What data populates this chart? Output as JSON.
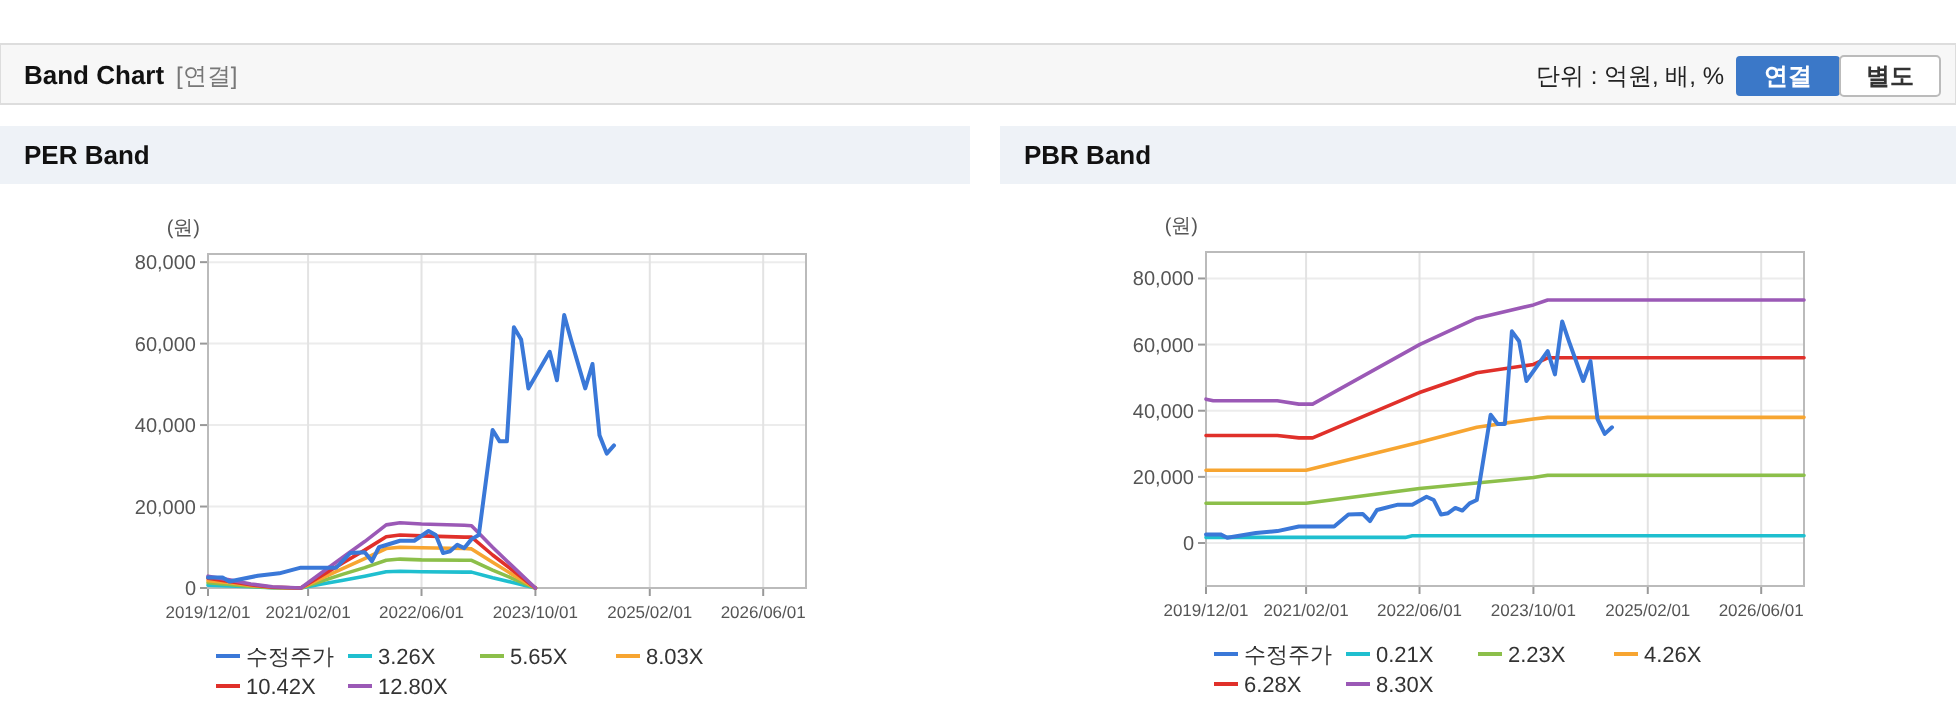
{
  "chart_data": [
    {
      "type": "other",
      "title": "Band Chart",
      "annotations": [
        "[연결]",
        "단위 : 억원, 배, %",
        "연결",
        "별도"
      ]
    },
    {
      "type": "line",
      "title": "PER Band",
      "ylabel": "(원)",
      "xlim": [
        "2019-12-01",
        "2026-12-01"
      ],
      "ylim": [
        0,
        82000
      ],
      "xticks": [
        {
          "value": "2019-12-01",
          "label": "2019/12/01"
        },
        {
          "value": "2021-02-01",
          "label": "2021/02/01"
        },
        {
          "value": "2022-06-01",
          "label": "2022/06/01"
        },
        {
          "value": "2023-10-01",
          "label": "2023/10/01"
        },
        {
          "value": "2025-02-01",
          "label": "2025/02/01"
        },
        {
          "value": "2026-06-01",
          "label": "2026/06/01"
        }
      ],
      "yticks": [
        {
          "value": 0,
          "label": "0"
        },
        {
          "value": 20000,
          "label": "20,000"
        },
        {
          "value": 40000,
          "label": "40,000"
        },
        {
          "value": 60000,
          "label": "60,000"
        },
        {
          "value": 80000,
          "label": "80,000"
        }
      ],
      "grid": true,
      "legend": "bottom",
      "series": [
        {
          "name": "수정주가",
          "color": "#3a78d8",
          "x": [
            "2019-12",
            "2020-02",
            "2020-03",
            "2020-07",
            "2020-10",
            "2021-01",
            "2021-06",
            "2021-08",
            "2021-10",
            "2021-11",
            "2021-12",
            "2022-03",
            "2022-05",
            "2022-07",
            "2022-08",
            "2022-09",
            "2022-10",
            "2022-11",
            "2022-12",
            "2023-01",
            "2023-02",
            "2023-04",
            "2023-05",
            "2023-06",
            "2023-07",
            "2023-08",
            "2023-09",
            "2023-12",
            "2024-01",
            "2024-02",
            "2024-03",
            "2024-05",
            "2024-06",
            "2024-07",
            "2024-08",
            "2024-09"
          ],
          "values": [
            2600,
            2600,
            1600,
            3000,
            3600,
            5000,
            5000,
            8600,
            8800,
            6600,
            10000,
            11600,
            11600,
            14000,
            13000,
            8600,
            9000,
            10600,
            9800,
            12000,
            13000,
            38800,
            36000,
            36000,
            64000,
            61000,
            49000,
            58000,
            51000,
            67000,
            61000,
            49000,
            55000,
            37500,
            33000,
            35000
          ]
        },
        {
          "name": "3.26X",
          "color": "#1fbfcf",
          "x": [
            "2019-12",
            "2020-03",
            "2020-06",
            "2020-09",
            "2021-01",
            "2021-04",
            "2021-07",
            "2021-10",
            "2022-01",
            "2022-03",
            "2022-06",
            "2022-12",
            "2023-01",
            "2023-04",
            "2023-07",
            "2023-10"
          ],
          "values": [
            700,
            500,
            300,
            100,
            0,
            1000,
            1900,
            2900,
            4000,
            4100,
            4000,
            3900,
            3900,
            2500,
            1300,
            0
          ]
        },
        {
          "name": "5.65X",
          "color": "#8cbf4a",
          "x": [
            "2019-12",
            "2020-03",
            "2020-06",
            "2020-09",
            "2021-01",
            "2021-04",
            "2021-07",
            "2021-10",
            "2022-01",
            "2022-03",
            "2022-06",
            "2022-12",
            "2023-01",
            "2023-04",
            "2023-07",
            "2023-10"
          ],
          "values": [
            1300,
            900,
            400,
            100,
            0,
            1700,
            3400,
            5000,
            6800,
            7100,
            6900,
            6800,
            6800,
            4400,
            2200,
            0
          ]
        },
        {
          "name": "8.03X",
          "color": "#f7a531",
          "x": [
            "2019-12",
            "2020-03",
            "2020-06",
            "2020-09",
            "2021-01",
            "2021-04",
            "2021-07",
            "2021-10",
            "2022-01",
            "2022-03",
            "2022-06",
            "2022-12",
            "2023-01",
            "2023-04",
            "2023-07",
            "2023-10"
          ],
          "values": [
            1800,
            1300,
            600,
            200,
            0,
            2400,
            4800,
            7200,
            9700,
            10000,
            9900,
            9700,
            9600,
            6300,
            3100,
            0
          ]
        },
        {
          "name": "10.42X",
          "color": "#e0302a",
          "x": [
            "2019-12",
            "2020-03",
            "2020-06",
            "2020-09",
            "2021-01",
            "2021-04",
            "2021-07",
            "2021-10",
            "2022-01",
            "2022-03",
            "2022-06",
            "2022-12",
            "2023-01",
            "2023-04",
            "2023-07",
            "2023-10"
          ],
          "values": [
            2400,
            1600,
            800,
            200,
            0,
            3100,
            6200,
            9300,
            12600,
            13000,
            12800,
            12500,
            12500,
            8100,
            4100,
            0
          ]
        },
        {
          "name": "12.80X",
          "color": "#9b59b6",
          "x": [
            "2019-12",
            "2020-03",
            "2020-06",
            "2020-09",
            "2021-01",
            "2021-04",
            "2021-07",
            "2021-10",
            "2022-01",
            "2022-03",
            "2022-06",
            "2022-12",
            "2023-01",
            "2023-04",
            "2023-07",
            "2023-10"
          ],
          "values": [
            2900,
            2000,
            1000,
            300,
            0,
            3800,
            7600,
            11400,
            15500,
            16000,
            15700,
            15400,
            15300,
            10000,
            5000,
            0
          ]
        }
      ]
    },
    {
      "type": "line",
      "title": "PBR Band",
      "ylabel": "(원)",
      "xlim": [
        "2019-12-01",
        "2026-12-01"
      ],
      "ylim": [
        -13000,
        88000
      ],
      "xticks": [
        {
          "value": "2019-12-01",
          "label": "2019/12/01"
        },
        {
          "value": "2021-02-01",
          "label": "2021/02/01"
        },
        {
          "value": "2022-06-01",
          "label": "2022/06/01"
        },
        {
          "value": "2023-10-01",
          "label": "2023/10/01"
        },
        {
          "value": "2025-02-01",
          "label": "2025/02/01"
        },
        {
          "value": "2026-06-01",
          "label": "2026/06/01"
        }
      ],
      "yticks": [
        {
          "value": 0,
          "label": "0"
        },
        {
          "value": 20000,
          "label": "20,000"
        },
        {
          "value": 40000,
          "label": "40,000"
        },
        {
          "value": 60000,
          "label": "60,000"
        },
        {
          "value": 80000,
          "label": "80,000"
        }
      ],
      "grid": true,
      "legend": "bottom",
      "series": [
        {
          "name": "수정주가",
          "color": "#3a78d8",
          "x": [
            "2019-12",
            "2020-02",
            "2020-03",
            "2020-07",
            "2020-10",
            "2021-01",
            "2021-06",
            "2021-08",
            "2021-10",
            "2021-11",
            "2021-12",
            "2022-03",
            "2022-05",
            "2022-07",
            "2022-08",
            "2022-09",
            "2022-10",
            "2022-11",
            "2022-12",
            "2023-01",
            "2023-02",
            "2023-04",
            "2023-05",
            "2023-06",
            "2023-07",
            "2023-08",
            "2023-09",
            "2023-12",
            "2024-01",
            "2024-02",
            "2024-03",
            "2024-05",
            "2024-06",
            "2024-07",
            "2024-08",
            "2024-09"
          ],
          "values": [
            2600,
            2600,
            1600,
            3000,
            3600,
            5000,
            5000,
            8600,
            8800,
            6600,
            10000,
            11600,
            11600,
            14000,
            13000,
            8600,
            9000,
            10600,
            9800,
            12000,
            13000,
            38800,
            36000,
            36000,
            64000,
            61000,
            49000,
            58000,
            51000,
            67000,
            61000,
            49000,
            55000,
            37500,
            33000,
            35000
          ]
        },
        {
          "name": "0.21X",
          "color": "#1fbfcf",
          "x": [
            "2019-12",
            "2022-04",
            "2022-05",
            "2026-12"
          ],
          "values": [
            1700,
            1700,
            2200,
            2200
          ]
        },
        {
          "name": "2.23X",
          "color": "#8cbf4a",
          "x": [
            "2019-12",
            "2021-02",
            "2022-06",
            "2023-10",
            "2023-12",
            "2026-12"
          ],
          "values": [
            12000,
            12000,
            16500,
            19800,
            20500,
            20500
          ]
        },
        {
          "name": "4.26X",
          "color": "#f7a531",
          "x": [
            "2019-12",
            "2021-02",
            "2022-06",
            "2023-02",
            "2023-10",
            "2023-12",
            "2026-12"
          ],
          "values": [
            22000,
            22000,
            30500,
            35000,
            37500,
            38000,
            38000
          ]
        },
        {
          "name": "6.28X",
          "color": "#e0302a",
          "x": [
            "2019-12",
            "2020-10",
            "2021-01",
            "2021-03",
            "2022-06",
            "2023-02",
            "2023-10",
            "2023-12",
            "2026-12"
          ],
          "values": [
            32500,
            32500,
            31800,
            31800,
            45500,
            51500,
            54000,
            56000,
            56000
          ]
        },
        {
          "name": "8.30X",
          "color": "#9b59b6",
          "x": [
            "2019-12",
            "2020-01",
            "2020-10",
            "2021-01",
            "2021-03",
            "2022-06",
            "2023-02",
            "2023-10",
            "2023-12",
            "2026-12"
          ],
          "values": [
            43500,
            43000,
            43000,
            42000,
            42000,
            60000,
            68000,
            72000,
            73500,
            73500
          ]
        }
      ]
    }
  ]
}
